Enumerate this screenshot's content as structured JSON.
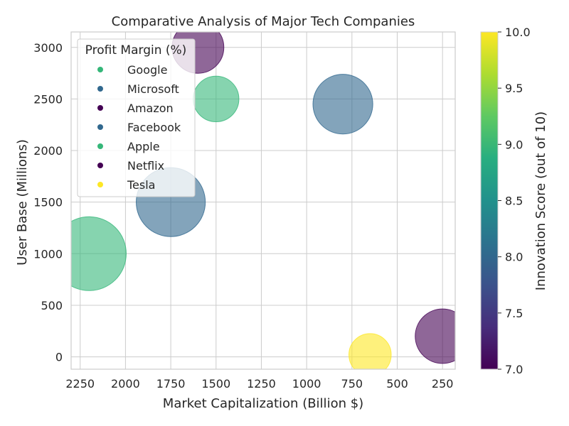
{
  "chart_data": {
    "type": "scatter",
    "subtype": "bubble",
    "title": "Comparative Analysis of Major Tech Companies",
    "xlabel": "Market Capitalization (Billion $)",
    "ylabel": "User Base (Millions)",
    "x_inverted": true,
    "xlim": [
      2300,
      180
    ],
    "ylim": [
      -120,
      3150
    ],
    "xticks": [
      2250,
      2000,
      1750,
      1500,
      1250,
      1000,
      750,
      500,
      250
    ],
    "yticks": [
      0,
      500,
      1000,
      1500,
      2000,
      2500,
      3000
    ],
    "grid": true,
    "legend": {
      "title": "Profit Margin (%)",
      "placement": "top-left"
    },
    "colorbar": {
      "label": "Innovation Score (out of 10)",
      "range": [
        7.0,
        10.0
      ],
      "ticks": [
        "7.0",
        "7.5",
        "8.0",
        "8.5",
        "9.0",
        "9.5",
        "10.0"
      ],
      "colormap": "viridis"
    },
    "series": [
      {
        "name": "Google",
        "market_cap": 1500,
        "user_base": 2500,
        "profit_margin": 21,
        "innovation_score": 9,
        "color": "#35b779"
      },
      {
        "name": "Microsoft",
        "market_cap": 800,
        "user_base": 2450,
        "profit_margin": 36,
        "innovation_score": 8,
        "color": "#31688e"
      },
      {
        "name": "Amazon",
        "market_cap": 1600,
        "user_base": 3000,
        "profit_margin": 27,
        "innovation_score": 7,
        "color": "#440154"
      },
      {
        "name": "Facebook",
        "market_cap": 1750,
        "user_base": 1500,
        "profit_margin": 48,
        "innovation_score": 8,
        "color": "#31688e"
      },
      {
        "name": "Apple",
        "market_cap": 2200,
        "user_base": 1000,
        "profit_margin": 55,
        "innovation_score": 9,
        "color": "#35b779"
      },
      {
        "name": "Netflix",
        "market_cap": 250,
        "user_base": 200,
        "profit_margin": 30,
        "innovation_score": 7,
        "color": "#440154"
      },
      {
        "name": "Tesla",
        "market_cap": 650,
        "user_base": 20,
        "profit_margin": 18,
        "innovation_score": 10,
        "color": "#fde725"
      }
    ]
  }
}
